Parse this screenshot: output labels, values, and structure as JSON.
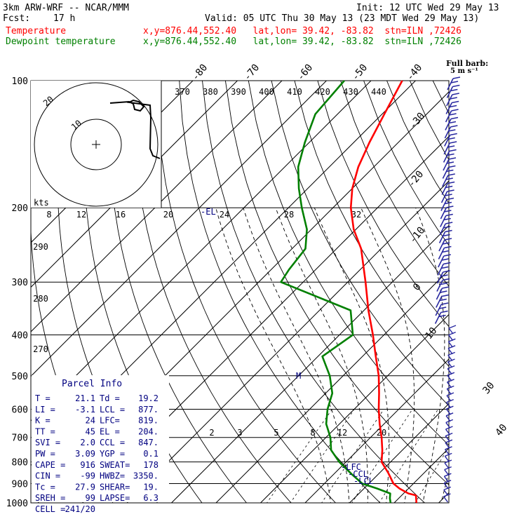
{
  "header": {
    "model": "3km ARW-WRF -- NCAR/MMM",
    "init": "Init: 12 UTC Wed 29 May 13",
    "fcst_label": "Fcst:",
    "fcst_value": "17 h",
    "valid": "Valid: 05 UTC Thu 30 May 13 (23 MDT Wed 29 May 13)",
    "temp_label": "Temperature",
    "temp_info": "x,y=876.44,552.40   lat,lon= 39.42, -83.82  stn=ILN ,72426",
    "dew_label": "Dewpoint temperature",
    "dew_info": "x,y=876.44,552.40   lat,lon= 39.42, -83.82  stn=ILN ,72426"
  },
  "colors": {
    "temperature": "#ff0000",
    "dewpoint": "#008000",
    "parcel": "#000080",
    "wind": "#2828a0",
    "grid": "#000000",
    "header_red": "#ff0000",
    "header_green": "#008000"
  },
  "chart_data": {
    "type": "line",
    "subtype": "skew-t log-p sounding",
    "pressure_levels": [
      100,
      200,
      300,
      400,
      500,
      600,
      700,
      800,
      900,
      1000
    ],
    "isotherm_labels": [
      -80,
      -70,
      -60,
      -50,
      -40,
      -30,
      -20,
      -10,
      0,
      10
    ],
    "isotherm_top_labels": [
      "-80",
      "-70",
      "-60",
      "-50",
      "-40"
    ],
    "isotherm_side_labels": [
      "-30",
      "-20",
      "-10",
      "0",
      "10"
    ],
    "theta_e_labels": [
      "370",
      "380",
      "390",
      "400",
      "410",
      "420",
      "430",
      "440"
    ],
    "theta_lower_labels": [
      "290",
      "280",
      "270"
    ],
    "mixing_ratio_labels": [
      "2",
      "3",
      "5",
      "8",
      "12",
      "20"
    ],
    "bottom_axis_labels": [
      "30",
      "40"
    ],
    "hodograph": {
      "unit": "kts",
      "ring_labels": [
        "10",
        "20"
      ],
      "speed_labels": [
        "8",
        "12",
        "16",
        "20",
        "24",
        "28",
        "32"
      ]
    },
    "wind_legend": "Full barb:",
    "wind_legend_sub": "5 m s⁻¹",
    "level_marks": {
      "el": "-EL",
      "lfc": "-LFC",
      "ccl": "-CCL",
      "lcl": "-LCL",
      "m": "M"
    },
    "series": [
      {
        "name": "Temperature",
        "points": [
          [
            1000,
            25
          ],
          [
            960,
            23.2
          ],
          [
            950,
            21.1
          ],
          [
            925,
            18
          ],
          [
            900,
            15.5
          ],
          [
            850,
            12
          ],
          [
            800,
            8
          ],
          [
            750,
            5.5
          ],
          [
            700,
            2.5
          ],
          [
            650,
            -1
          ],
          [
            600,
            -4.5
          ],
          [
            550,
            -8
          ],
          [
            500,
            -12
          ],
          [
            450,
            -17
          ],
          [
            400,
            -22.5
          ],
          [
            350,
            -29
          ],
          [
            300,
            -36
          ],
          [
            250,
            -44.5
          ],
          [
            225,
            -50.5
          ],
          [
            200,
            -56
          ],
          [
            180,
            -60
          ],
          [
            160,
            -63.5
          ],
          [
            140,
            -66.5
          ],
          [
            120,
            -69.5
          ],
          [
            100,
            -73
          ]
        ]
      },
      {
        "name": "Dewpoint temperature",
        "points": [
          [
            1000,
            19.2
          ],
          [
            975,
            18
          ],
          [
            950,
            17
          ],
          [
            925,
            13
          ],
          [
            900,
            8.5
          ],
          [
            850,
            3.5
          ],
          [
            800,
            -1.5
          ],
          [
            750,
            -6
          ],
          [
            700,
            -9
          ],
          [
            650,
            -13
          ],
          [
            600,
            -16
          ],
          [
            550,
            -18.5
          ],
          [
            500,
            -23
          ],
          [
            450,
            -29
          ],
          [
            400,
            -27
          ],
          [
            350,
            -33
          ],
          [
            300,
            -55
          ],
          [
            280,
            -56
          ],
          [
            250,
            -57
          ],
          [
            225,
            -61
          ],
          [
            200,
            -67
          ],
          [
            180,
            -72
          ],
          [
            160,
            -77
          ],
          [
            140,
            -81
          ],
          [
            120,
            -85
          ],
          [
            100,
            -86
          ]
        ]
      }
    ],
    "parcel_info": {
      "title": "Parcel Info",
      "rows": [
        [
          "T =",
          "21.1",
          "Td =",
          "19.2"
        ],
        [
          "LI =",
          "-3.1",
          "LCL =",
          "877."
        ],
        [
          "K =",
          "24",
          "LFC=",
          "819."
        ],
        [
          "TT =",
          "45",
          "EL =",
          "204."
        ],
        [
          "SVI =",
          "2.0",
          "CCL =",
          "847."
        ],
        [
          "PW =",
          "3.09",
          "YGP =",
          "0.1"
        ],
        [
          "CAPE =",
          "916",
          "SWEAT=",
          "178"
        ],
        [
          "CIN =",
          "-99",
          "HWBZ=",
          "3350."
        ],
        [
          "Tc =",
          "27.9",
          "SHEAR=",
          "19."
        ],
        [
          "SREH =",
          "99",
          "LAPSE=",
          "6.3"
        ],
        [
          "CELL =",
          "241/20",
          "",
          ""
        ]
      ]
    }
  }
}
